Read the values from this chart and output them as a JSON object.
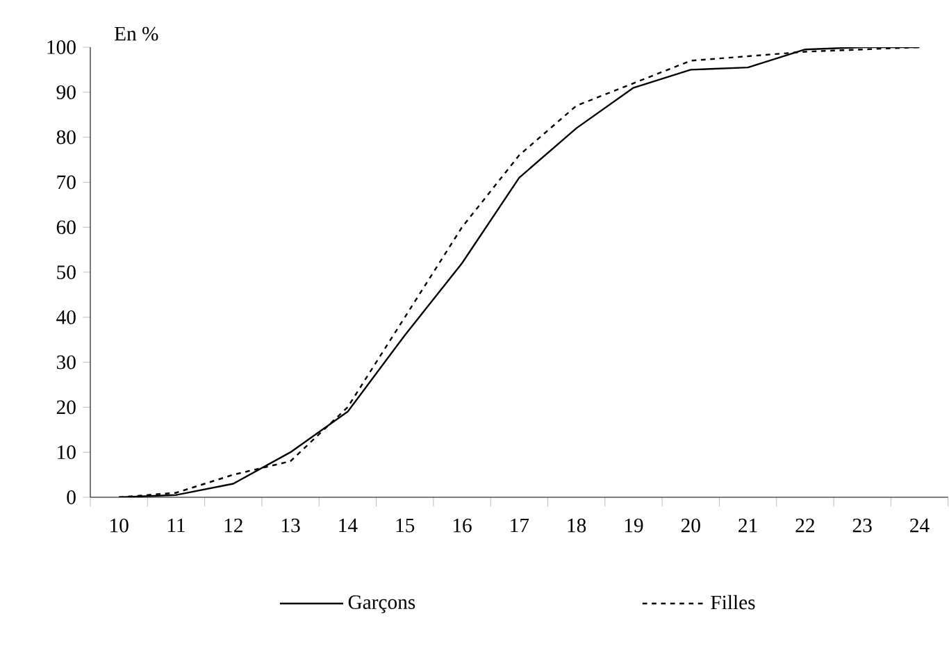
{
  "chart_data": {
    "type": "line",
    "ylabel": "En %",
    "categories": [
      "10",
      "11",
      "12",
      "13",
      "14",
      "15",
      "16",
      "17",
      "18",
      "19",
      "20",
      "21",
      "22",
      "23",
      "24"
    ],
    "series": [
      {
        "name": "Garçons",
        "color": "#000000",
        "line_style": "solid",
        "values": [
          0,
          0.5,
          3,
          10,
          19,
          36,
          52,
          71,
          82,
          91,
          95,
          95.5,
          99.5,
          100,
          100
        ]
      },
      {
        "name": "Filles",
        "color": "#000000",
        "line_style": "dashed",
        "values": [
          0,
          1,
          5,
          8,
          20,
          40,
          60,
          76,
          87,
          92,
          97,
          98,
          99,
          99.5,
          100
        ]
      }
    ],
    "ylim": [
      0,
      100
    ],
    "yticks": [
      0,
      10,
      20,
      30,
      40,
      50,
      60,
      70,
      80,
      90,
      100
    ],
    "grid": false,
    "legend": "bottom"
  }
}
